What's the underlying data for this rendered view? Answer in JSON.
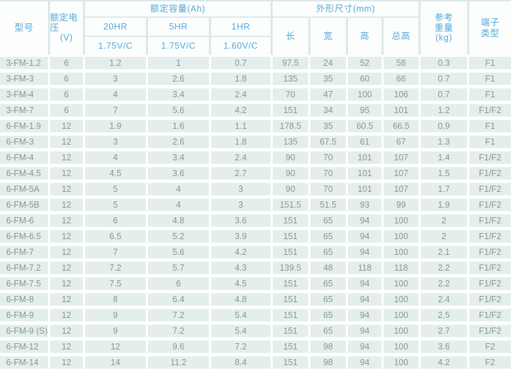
{
  "colors": {
    "header_text": "#54a9da",
    "header_cell_bg": "#fcfdfd",
    "header_line": "#dce8ea",
    "row_bg": "#e4eeec",
    "row_text": "#8a9596"
  },
  "header": {
    "model": "型号",
    "voltage_lines": [
      "额定电压",
      "(V)"
    ],
    "capacity_group": "额定容量(Ah)",
    "capacity_cols": [
      {
        "rate": "20HR",
        "cutoff": "1.75V/C"
      },
      {
        "rate": "5HR",
        "cutoff": "1.75V/C"
      },
      {
        "rate": "1HR",
        "cutoff": "1.60V/C"
      }
    ],
    "dimensions_group": "外形尺寸(mm)",
    "dimension_cols": [
      "长",
      "宽",
      "高",
      "总高"
    ],
    "weight_lines": [
      "参考",
      "重量",
      "(kg)"
    ],
    "terminal_lines": [
      "端子",
      "类型"
    ]
  },
  "chart_data": {
    "type": "table",
    "columns": [
      "型号",
      "额定电压(V)",
      "额定容量(Ah) 20HR 1.75V/C",
      "额定容量(Ah) 5HR 1.75V/C",
      "额定容量(Ah) 1HR 1.60V/C",
      "外形尺寸(mm) 长",
      "外形尺寸(mm) 宽",
      "外形尺寸(mm) 高",
      "外形尺寸(mm) 总高",
      "参考重量(kg)",
      "端子类型"
    ],
    "rows": [
      [
        "3-FM-1.2",
        "6",
        "1.2",
        "1",
        "0.7",
        "97.5",
        "24",
        "52",
        "58",
        "0.3",
        "F1"
      ],
      [
        "3-FM-3",
        "6",
        "3",
        "2.6",
        "1.8",
        "135",
        "35",
        "60",
        "66",
        "0.7",
        "F1"
      ],
      [
        "3-FM-4",
        "6",
        "4",
        "3.4",
        "2.4",
        "70",
        "47",
        "100",
        "106",
        "0.7",
        "F1"
      ],
      [
        "3-FM-7",
        "6",
        "7",
        "5.6",
        "4.2",
        "151",
        "34",
        "95",
        "101",
        "1.2",
        "F1/F2"
      ],
      [
        "6-FM-1.9",
        "12",
        "1.9",
        "1.6",
        "1.1",
        "178.5",
        "35",
        "60.5",
        "66.5",
        "0.9",
        "F1"
      ],
      [
        "6-FM-3",
        "12",
        "3",
        "2.6",
        "1.8",
        "135",
        "67.5",
        "61",
        "67",
        "1.3",
        "F1"
      ],
      [
        "6-FM-4",
        "12",
        "4",
        "3.4",
        "2.4",
        "90",
        "70",
        "101",
        "107",
        "1.4",
        "F1/F2"
      ],
      [
        "6-FM-4.5",
        "12",
        "4.5",
        "3.6",
        "2.7",
        "90",
        "70",
        "101",
        "107",
        "1.5",
        "F1/F2"
      ],
      [
        "6-FM-5A",
        "12",
        "5",
        "4",
        "3",
        "90",
        "70",
        "101",
        "107",
        "1.7",
        "F1/F2"
      ],
      [
        "6-FM-5B",
        "12",
        "5",
        "4",
        "3",
        "151.5",
        "51.5",
        "93",
        "99",
        "1.9",
        "F1/F2"
      ],
      [
        "6-FM-6",
        "12",
        "6",
        "4.8",
        "3.6",
        "151",
        "65",
        "94",
        "100",
        "2",
        "F1/F2"
      ],
      [
        "6-FM-6.5",
        "12",
        "6.5",
        "5.2",
        "3.9",
        "151",
        "65",
        "94",
        "100",
        "2",
        "F1/F2"
      ],
      [
        "6-FM-7",
        "12",
        "7",
        "5.6",
        "4.2",
        "151",
        "65",
        "94",
        "100",
        "2.1",
        "F1/F2"
      ],
      [
        "6-FM-7.2",
        "12",
        "7.2",
        "5.7",
        "4.3",
        "139.5",
        "48",
        "118",
        "118",
        "2.2",
        "F1/F2"
      ],
      [
        "6-FM-7.5",
        "12",
        "7.5",
        "6",
        "4.5",
        "151",
        "65",
        "94",
        "100",
        "2.2",
        "F1/F2"
      ],
      [
        "6-FM-8",
        "12",
        "8",
        "6.4",
        "4.8",
        "151",
        "65",
        "94",
        "100",
        "2.4",
        "F1/F2"
      ],
      [
        "6-FM-9",
        "12",
        "9",
        "7.2",
        "5.4",
        "151",
        "65",
        "94",
        "100",
        "2.5",
        "F1/F2"
      ],
      [
        "6-FM-9 (S)",
        "12",
        "9",
        "7.2",
        "5.4",
        "151",
        "65",
        "94",
        "100",
        "2.7",
        "F1/F2"
      ],
      [
        "6-FM-12",
        "12",
        "12",
        "9.6",
        "7.2",
        "151",
        "98",
        "94",
        "100",
        "3.6",
        "F2"
      ],
      [
        "6-FM-14",
        "12",
        "14",
        "11.2",
        "8.4",
        "151",
        "98",
        "94",
        "100",
        "4.2",
        "F2"
      ]
    ]
  }
}
